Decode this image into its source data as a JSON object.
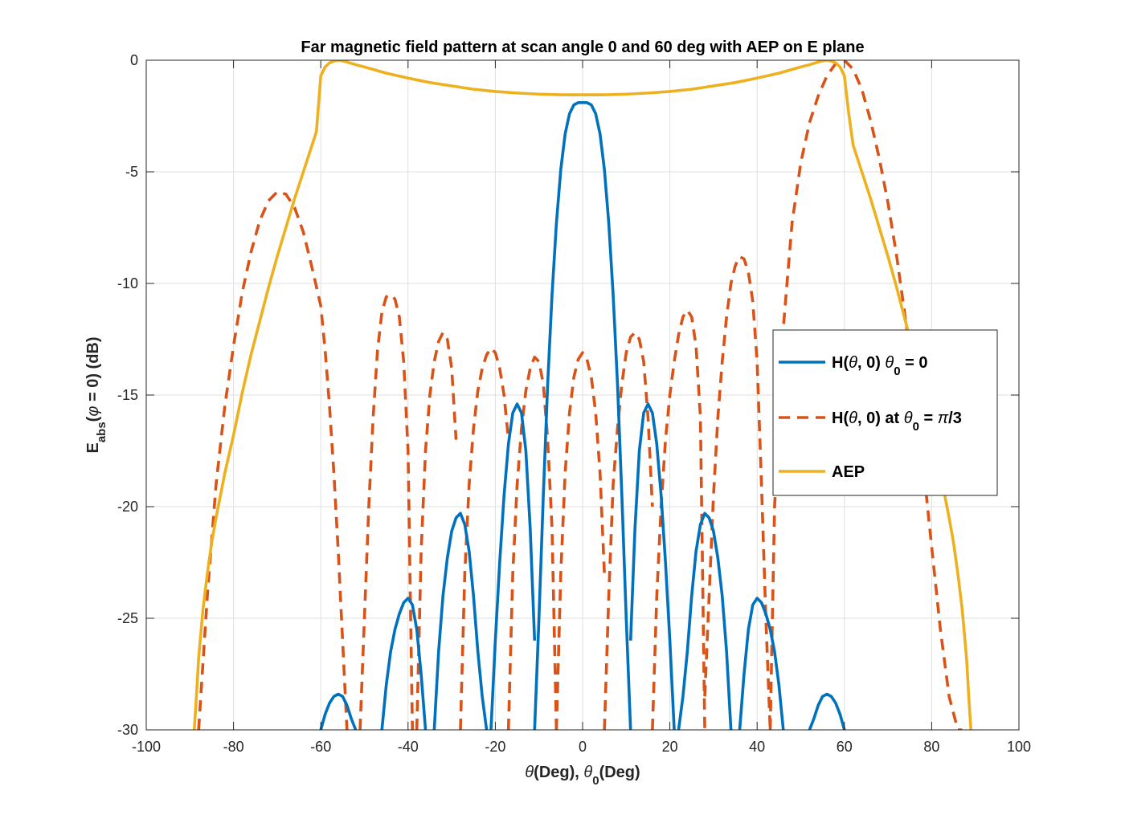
{
  "chart_data": {
    "type": "line",
    "title": "Far magnetic field pattern at scan angle 0 and 60 deg with AEP on E plane",
    "xlabel": {
      "parts": [
        {
          "text": "θ",
          "italic": true
        },
        {
          "text": "(Deg), "
        },
        {
          "text": "θ",
          "italic": true
        },
        {
          "text": "0",
          "sub": true
        },
        {
          "text": "(Deg)"
        }
      ]
    },
    "ylabel": {
      "parts": [
        {
          "text": "E"
        },
        {
          "text": "abs",
          "sub": true
        },
        {
          "text": "("
        },
        {
          "text": "φ",
          "italic": true
        },
        {
          "text": " = 0) (dB)"
        }
      ]
    },
    "xlim": [
      -100,
      100
    ],
    "ylim": [
      -30,
      0
    ],
    "xticks": [
      -100,
      -80,
      -60,
      -40,
      -20,
      0,
      20,
      40,
      60,
      80,
      100
    ],
    "yticks": [
      0,
      -5,
      -10,
      -15,
      -20,
      -25,
      -30
    ],
    "xtick_labels": [
      "-100",
      "-80",
      "-60",
      "-40",
      "-20",
      "0",
      "20",
      "40",
      "60",
      "80",
      "100"
    ],
    "ytick_labels": [
      "0",
      "-5",
      "-10",
      "-15",
      "-20",
      "-25",
      "-30"
    ],
    "grid": true,
    "legend_position": "right",
    "series": [
      {
        "name": "H(θ, 0) θ0 = 0",
        "legend_parts": [
          {
            "text": "H("
          },
          {
            "text": "θ",
            "italic": true
          },
          {
            "text": ", 0) "
          },
          {
            "text": "θ",
            "italic": true
          },
          {
            "text": "0",
            "sub": true
          },
          {
            "text": " = 0"
          }
        ],
        "color": "#0072BD",
        "dash": "solid",
        "x": [
          -60,
          -59,
          -58,
          -57,
          -56,
          -55,
          -54,
          -53,
          -52,
          null,
          -46,
          -45,
          -44,
          -43,
          -42,
          -41,
          -40,
          -39,
          -38,
          -37,
          -36,
          null,
          -34,
          -33,
          -32,
          -31,
          -30,
          -29,
          -28,
          -27,
          -26,
          -25,
          -24,
          -23,
          -22,
          null,
          -21,
          -20,
          -19,
          -18,
          -17,
          -16,
          -15,
          -14,
          -13,
          -12,
          -11,
          null,
          -11,
          -10,
          -9,
          -8,
          -7,
          -6,
          -5,
          -4,
          -3,
          -2,
          -1,
          0,
          1,
          2,
          3,
          4,
          5,
          6,
          7,
          8,
          9,
          10,
          11,
          null,
          11,
          12,
          13,
          14,
          15,
          16,
          17,
          18,
          19,
          20,
          21,
          null,
          22,
          23,
          24,
          25,
          26,
          27,
          28,
          29,
          30,
          31,
          32,
          33,
          34,
          null,
          36,
          37,
          38,
          39,
          40,
          41,
          42,
          43,
          44,
          45,
          46,
          null,
          52,
          53,
          54,
          55,
          56,
          57,
          58,
          59,
          60
        ],
        "y": [
          -30,
          -29.3,
          -28.8,
          -28.5,
          -28.4,
          -28.5,
          -28.9,
          -29.5,
          -30,
          null,
          -30,
          -28,
          -26.5,
          -25.5,
          -24.8,
          -24.3,
          -24.1,
          -24.4,
          -25.5,
          -27.5,
          -30,
          null,
          -30,
          -26.5,
          -24,
          -22.3,
          -21.1,
          -20.5,
          -20.3,
          -20.8,
          -22,
          -24,
          -26.5,
          -28.5,
          -30,
          null,
          -30,
          -26,
          -22.5,
          -19.5,
          -17.2,
          -15.8,
          -15.4,
          -15.8,
          -17.5,
          -21,
          -26,
          null,
          -30,
          -25,
          -19.5,
          -14.5,
          -10.5,
          -7.3,
          -4.9,
          -3.3,
          -2.4,
          -2.0,
          -1.9,
          -1.9,
          -1.9,
          -2.0,
          -2.4,
          -3.3,
          -4.9,
          -7.3,
          -10.5,
          -14.5,
          -19.5,
          -25,
          -30,
          null,
          -26,
          -21,
          -17.5,
          -15.8,
          -15.4,
          -15.8,
          -17.2,
          -19.5,
          -22.5,
          -26,
          -30,
          null,
          -30,
          -28.5,
          -26.5,
          -24,
          -22,
          -20.8,
          -20.3,
          -20.5,
          -21.1,
          -22.3,
          -24,
          -26.5,
          -30,
          null,
          -30,
          -27.5,
          -25.5,
          -24.4,
          -24.1,
          -24.3,
          -24.8,
          -25.5,
          -26.5,
          -28,
          -30,
          null,
          -30,
          -29.5,
          -28.9,
          -28.5,
          -28.4,
          -28.5,
          -28.8,
          -29.3,
          -30
        ]
      },
      {
        "name": "H(θ, 0) at θ0 = π/3",
        "legend_parts": [
          {
            "text": "H("
          },
          {
            "text": "θ",
            "italic": true
          },
          {
            "text": ", 0) at "
          },
          {
            "text": "θ",
            "italic": true
          },
          {
            "text": "0",
            "sub": true
          },
          {
            "text": " = "
          },
          {
            "text": "π",
            "italic": true
          },
          {
            "text": "/3"
          }
        ],
        "color": "#D95319",
        "dash": "dashed",
        "x": [
          -88,
          -86,
          -84,
          -82,
          -80,
          -78,
          -76,
          -74,
          -72,
          -70,
          -68,
          -66,
          -64,
          -62,
          -60,
          -59,
          -58,
          -57,
          -56,
          -55,
          -54,
          null,
          -51,
          -50,
          -49,
          -48,
          -47,
          -46,
          -45,
          -44,
          -43,
          -42,
          -41,
          -40,
          -39,
          null,
          -38,
          -37,
          -36,
          -35,
          -34,
          -33,
          -32,
          -31,
          -30,
          -29,
          null,
          -28,
          -27,
          -26,
          -25,
          -24,
          -23,
          -22,
          -21,
          -20,
          -19,
          -18,
          -17,
          null,
          -17,
          -16,
          -15,
          -14,
          -13,
          -12,
          -11,
          -10,
          -9,
          -8,
          -7,
          -6,
          null,
          -6,
          -5,
          -4,
          -3,
          -2,
          -1,
          0,
          1,
          2,
          3,
          4,
          5,
          null,
          5,
          6,
          7,
          8,
          9,
          10,
          11,
          12,
          13,
          14,
          15,
          16,
          null,
          16,
          17,
          18,
          19,
          20,
          21,
          22,
          23,
          24,
          25,
          26,
          27,
          28,
          null,
          28,
          29,
          30,
          31,
          32,
          33,
          34,
          35,
          36,
          37,
          38,
          39,
          40,
          41,
          42,
          43,
          null,
          43,
          44,
          46,
          48,
          50,
          52,
          54,
          56,
          58,
          60,
          62,
          64,
          66,
          68,
          70,
          72,
          74,
          76,
          78,
          80,
          82,
          84,
          86,
          87
        ],
        "y": [
          -30,
          -24,
          -19,
          -15.5,
          -12.8,
          -10.4,
          -8.6,
          -7.2,
          -6.3,
          -5.9,
          -6.0,
          -6.6,
          -7.7,
          -9.3,
          -11.0,
          -13,
          -15.5,
          -18.5,
          -22,
          -26,
          -30,
          null,
          -30,
          -25,
          -20,
          -16,
          -13,
          -11.3,
          -10.6,
          -10.5,
          -10.7,
          -11.5,
          -13.5,
          -17.5,
          -30,
          null,
          -30,
          -22,
          -17.5,
          -15,
          -13.5,
          -12.6,
          -12.2,
          -12.5,
          -13.8,
          -17,
          null,
          -30,
          -23,
          -19,
          -16.5,
          -14.8,
          -13.8,
          -13.2,
          -12.9,
          -13.1,
          -13.8,
          -15,
          -17,
          null,
          -30,
          -23,
          -19,
          -16.5,
          -14.8,
          -13.8,
          -13.3,
          -13.5,
          -14.5,
          -17,
          -21,
          -30,
          null,
          -30,
          -23,
          -18.5,
          -15.8,
          -14.2,
          -13.4,
          -13.1,
          -13.4,
          -14.2,
          -15.8,
          -18.5,
          -23,
          null,
          -30,
          -24,
          -19,
          -16.5,
          -14.5,
          -13.1,
          -12.4,
          -12.2,
          -12.5,
          -13.5,
          -16,
          -20,
          null,
          -30,
          -24,
          -20,
          -17,
          -15,
          -13.5,
          -12.3,
          -11.5,
          -11.2,
          -11.5,
          -12.8,
          -16,
          -30,
          null,
          -28.5,
          -24,
          -19.5,
          -16,
          -13.5,
          -11.5,
          -10.0,
          -9.2,
          -8.8,
          -8.9,
          -9.5,
          -10.8,
          -13.5,
          -19,
          -25,
          -30,
          null,
          -30,
          -20,
          -12,
          -7.3,
          -4.6,
          -2.8,
          -1.6,
          -0.7,
          -0.15,
          0,
          -0.4,
          -1.3,
          -2.7,
          -4.4,
          -6.4,
          -8.8,
          -11.6,
          -14.6,
          -18,
          -21.8,
          -25.5,
          -28.5,
          -30,
          -30
        ]
      },
      {
        "name": "AEP",
        "legend_parts": [
          {
            "text": "AEP"
          }
        ],
        "color": "#EDB120",
        "dash": "solid",
        "x": [
          -89,
          -88.5,
          -88,
          -87,
          -86,
          -85,
          -84,
          -83,
          -82,
          -80,
          -78,
          -76,
          -74,
          -72,
          -70,
          -68,
          -66,
          -64,
          -62,
          -61,
          -60,
          -59,
          -58,
          -57,
          -56,
          -55,
          -54,
          -52,
          -50,
          -45,
          -40,
          -35,
          -30,
          -25,
          -20,
          -15,
          -10,
          -5,
          0,
          5,
          10,
          15,
          20,
          25,
          30,
          35,
          40,
          45,
          50,
          52,
          54,
          55,
          56,
          57,
          58,
          59,
          60,
          61,
          62,
          64,
          66,
          68,
          70,
          72,
          74,
          76,
          78,
          80,
          82,
          83,
          84,
          85,
          86,
          87,
          88,
          88.5,
          89
        ],
        "y": [
          -30,
          -28.5,
          -26.8,
          -24.6,
          -23.0,
          -21.6,
          -20.5,
          -19.5,
          -18.5,
          -16.8,
          -14.9,
          -13.2,
          -11.7,
          -10.2,
          -8.8,
          -7.5,
          -6.2,
          -5.0,
          -3.8,
          -3.2,
          -0.7,
          -0.3,
          -0.12,
          -0.04,
          0,
          -0.03,
          -0.08,
          -0.2,
          -0.3,
          -0.58,
          -0.8,
          -1.0,
          -1.15,
          -1.3,
          -1.4,
          -1.47,
          -1.52,
          -1.55,
          -1.55,
          -1.55,
          -1.52,
          -1.47,
          -1.4,
          -1.3,
          -1.15,
          -1.0,
          -0.8,
          -0.58,
          -0.3,
          -0.2,
          -0.08,
          -0.03,
          0,
          -0.04,
          -0.12,
          -0.3,
          -0.7,
          -2.4,
          -3.8,
          -5.0,
          -6.2,
          -7.5,
          -8.8,
          -10.2,
          -11.7,
          -13.2,
          -14.9,
          -16.8,
          -18.5,
          -19.5,
          -20.5,
          -21.6,
          -23.0,
          -24.6,
          -26.8,
          -28.5,
          -30
        ]
      }
    ]
  }
}
